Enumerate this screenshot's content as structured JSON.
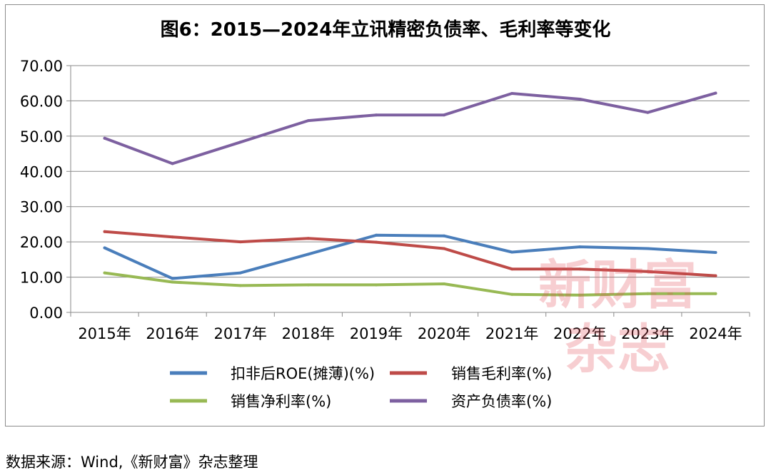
{
  "chart_data": {
    "type": "line",
    "title": "图6：2015—2024年立讯精密负债率、毛利率等变化",
    "categories": [
      "2015年",
      "2016年",
      "2017年",
      "2018年",
      "2019年",
      "2020年",
      "2021年",
      "2022年",
      "2023年",
      "2024年"
    ],
    "ylim": [
      0,
      70
    ],
    "yticks": [
      "0.00",
      "10.00",
      "20.00",
      "30.00",
      "40.00",
      "50.00",
      "60.00",
      "70.00"
    ],
    "grid": true,
    "legend_position": "bottom",
    "series": [
      {
        "name": "扣非后ROE(摊薄)(%)",
        "color": "#4a7ebb",
        "values": [
          18.3,
          9.6,
          11.2,
          16.5,
          21.9,
          21.7,
          17.1,
          18.6,
          18.1,
          17.0
        ]
      },
      {
        "name": "销售毛利率(%)",
        "color": "#be4b48",
        "values": [
          22.9,
          21.4,
          20.0,
          21.0,
          19.9,
          18.1,
          12.3,
          12.3,
          11.6,
          10.4
        ]
      },
      {
        "name": "销售净利率(%)",
        "color": "#98b954",
        "values": [
          11.2,
          8.6,
          7.6,
          7.8,
          7.8,
          8.1,
          5.1,
          4.9,
          5.3,
          5.3
        ]
      },
      {
        "name": "资产负债率(%)",
        "color": "#7d60a0",
        "values": [
          49.4,
          42.2,
          48.3,
          54.4,
          56.0,
          56.0,
          62.1,
          60.5,
          56.7,
          62.2
        ]
      }
    ]
  },
  "watermark": {
    "line1": "新财富",
    "line2": "杂志"
  },
  "source_note": "数据来源：Wind,《新财富》杂志整理"
}
